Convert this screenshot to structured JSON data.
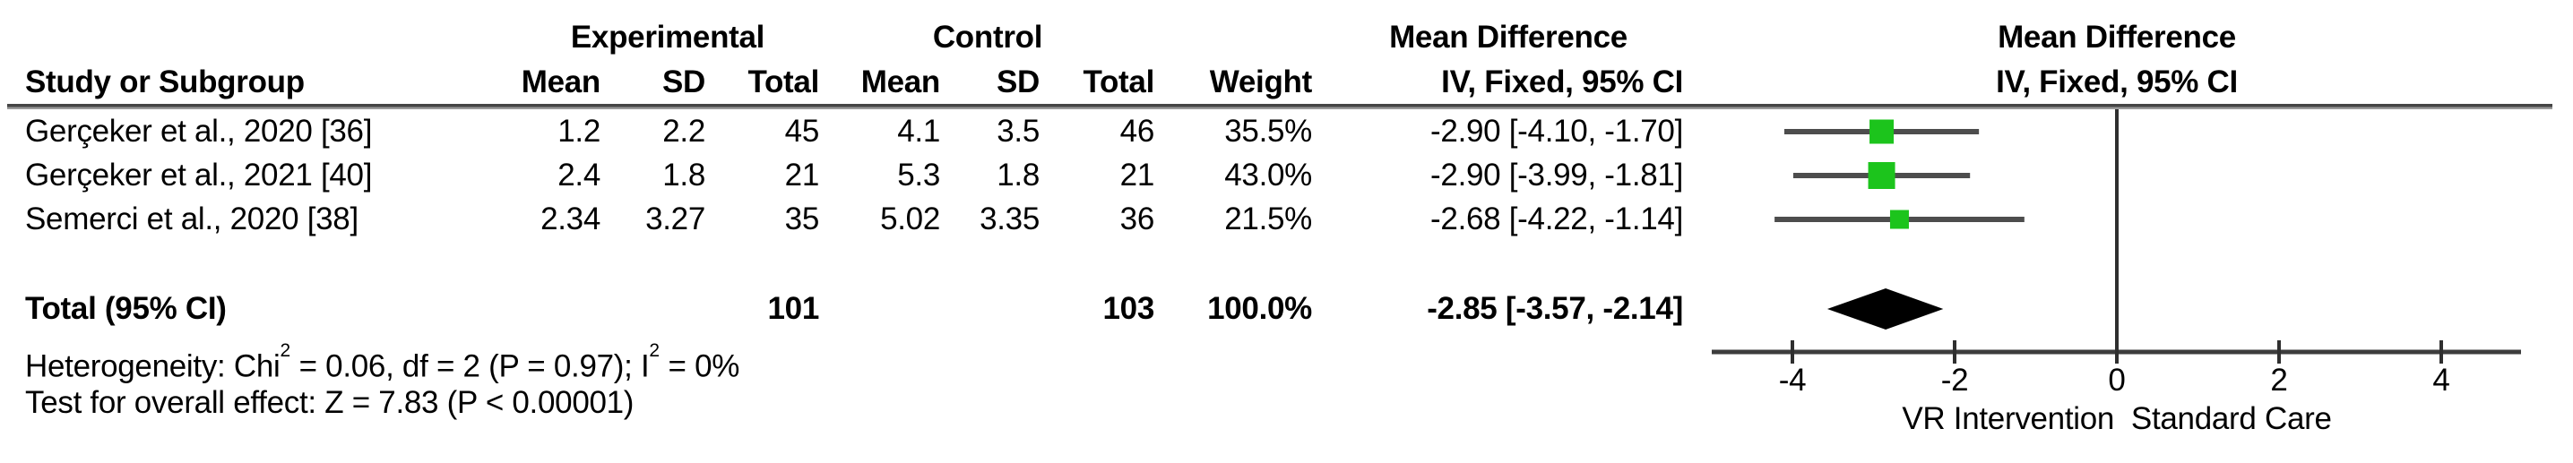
{
  "header": {
    "study_col": "Study or Subgroup",
    "group_experimental": "Experimental",
    "group_control": "Control",
    "mean": "Mean",
    "sd": "SD",
    "total": "Total",
    "weight": "Weight",
    "effect_title": "Mean Difference",
    "effect_sub": "IV, Fixed, 95% CI",
    "plot_title": "Mean Difference",
    "plot_sub": "IV, Fixed, 95% CI"
  },
  "rows": [
    {
      "study": "Gerçeker et al., 2020 [36]",
      "e_mean": "1.2",
      "e_sd": "2.2",
      "e_total": "45",
      "c_mean": "4.1",
      "c_sd": "3.5",
      "c_total": "46",
      "weight": "35.5%",
      "ci": "-2.90 [-4.10, -1.70]"
    },
    {
      "study": "Gerçeker et al., 2021 [40]",
      "e_mean": "2.4",
      "e_sd": "1.8",
      "e_total": "21",
      "c_mean": "5.3",
      "c_sd": "1.8",
      "c_total": "21",
      "weight": "43.0%",
      "ci": "-2.90 [-3.99, -1.81]"
    },
    {
      "study": "Semerci et al., 2020 [38]",
      "e_mean": "2.34",
      "e_sd": "3.27",
      "e_total": "35",
      "c_mean": "5.02",
      "c_sd": "3.35",
      "c_total": "36",
      "weight": "21.5%",
      "ci": "-2.68 [-4.22, -1.14]"
    }
  ],
  "total_row": {
    "label": "Total (95% CI)",
    "e_total": "101",
    "c_total": "103",
    "weight": "100.0%",
    "ci": "-2.85 [-3.57, -2.14]"
  },
  "footer": {
    "het_pre": "Heterogeneity: Chi",
    "sup1": "2",
    "het_mid": " = 0.06, df = 2 (P = 0.97); I",
    "sup2": "2",
    "het_post": " = 0%",
    "test": "Test for overall effect: Z = 7.83 (P < 0.00001)"
  },
  "axis": {
    "label": "VR Intervention  Standard Care"
  },
  "colors": {
    "marker_green": "#1cc41c",
    "ci_line": "#4d4d4d",
    "axis": "#3d3d3d",
    "zero_line": "#2f2f2f",
    "diamond": "#000000"
  },
  "chart_data": {
    "type": "forest",
    "effect_measure": "Mean Difference",
    "model": "IV, Fixed, 95% CI",
    "studies": [
      {
        "name": "Gerçeker et al., 2020 [36]",
        "experimental": {
          "mean": 1.2,
          "sd": 2.2,
          "total": 45
        },
        "control": {
          "mean": 4.1,
          "sd": 3.5,
          "total": 46
        },
        "weight_pct": 35.5,
        "md": -2.9,
        "ci_low": -4.1,
        "ci_high": -1.7
      },
      {
        "name": "Gerçeker et al., 2021 [40]",
        "experimental": {
          "mean": 2.4,
          "sd": 1.8,
          "total": 21
        },
        "control": {
          "mean": 5.3,
          "sd": 1.8,
          "total": 21
        },
        "weight_pct": 43.0,
        "md": -2.9,
        "ci_low": -3.99,
        "ci_high": -1.81
      },
      {
        "name": "Semerci et al., 2020 [38]",
        "experimental": {
          "mean": 2.34,
          "sd": 3.27,
          "total": 35
        },
        "control": {
          "mean": 5.02,
          "sd": 3.35,
          "total": 36
        },
        "weight_pct": 21.5,
        "md": -2.68,
        "ci_low": -4.22,
        "ci_high": -1.14
      }
    ],
    "total": {
      "experimental_total": 101,
      "control_total": 103,
      "weight_pct": 100.0,
      "md": -2.85,
      "ci_low": -3.57,
      "ci_high": -2.14
    },
    "heterogeneity": "Chi2 = 0.06, df = 2 (P = 0.97); I2 = 0%",
    "overall_effect": "Z = 7.83 (P < 0.00001)",
    "xlim": [
      -5,
      5
    ],
    "xticks": [
      -4,
      -2,
      0,
      2,
      4
    ],
    "xlabel_left": "VR Intervention",
    "xlabel_right": "Standard Care"
  }
}
